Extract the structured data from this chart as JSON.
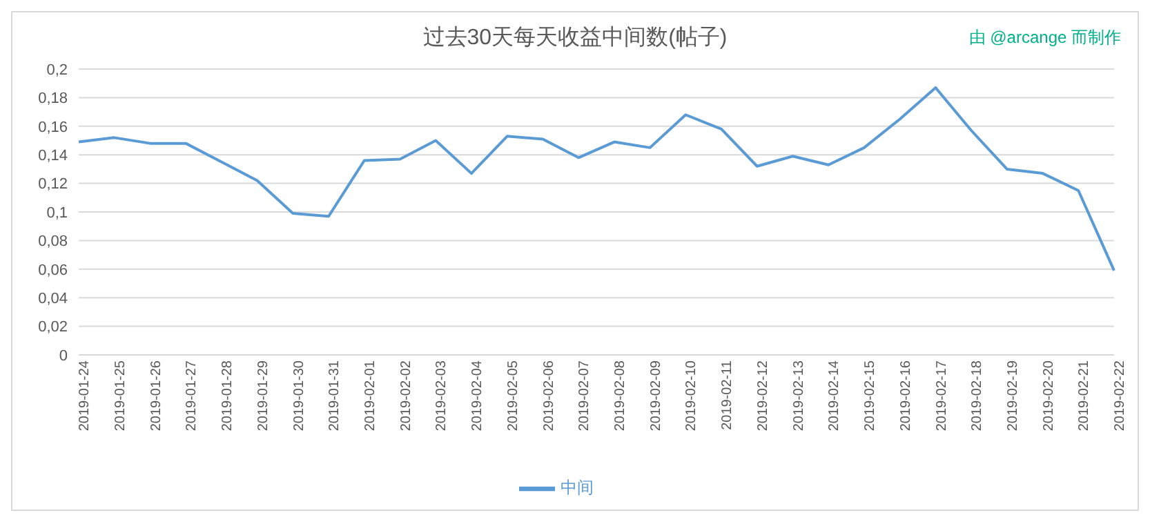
{
  "chart_data": {
    "type": "line",
    "title": "过去30天每天收益中间数(帖子)",
    "annotations": [
      "由 @arcange 而制作"
    ],
    "categories": [
      "2019-01-24",
      "2019-01-25",
      "2019-01-26",
      "2019-01-27",
      "2019-01-28",
      "2019-01-29",
      "2019-01-30",
      "2019-01-31",
      "2019-02-01",
      "2019-02-02",
      "2019-02-03",
      "2019-02-04",
      "2019-02-05",
      "2019-02-06",
      "2019-02-07",
      "2019-02-08",
      "2019-02-09",
      "2019-02-10",
      "2019-02-11",
      "2019-02-12",
      "2019-02-13",
      "2019-02-14",
      "2019-02-15",
      "2019-02-16",
      "2019-02-17",
      "2019-02-18",
      "2019-02-19",
      "2019-02-20",
      "2019-02-21",
      "2019-02-22"
    ],
    "series": [
      {
        "name": "中间",
        "color": "#5b9bd5",
        "values": [
          0.149,
          0.152,
          0.148,
          0.148,
          0.135,
          0.122,
          0.099,
          0.097,
          0.136,
          0.137,
          0.15,
          0.127,
          0.153,
          0.151,
          0.138,
          0.149,
          0.145,
          0.168,
          0.158,
          0.132,
          0.139,
          0.133,
          0.145,
          0.165,
          0.187,
          0.157,
          0.13,
          0.127,
          0.115,
          0.059
        ]
      }
    ],
    "ylim": [
      0,
      0.2
    ],
    "yticks": [
      0,
      {
        "value": 0.02,
        "label": "0,02"
      },
      {
        "value": 0.04,
        "label": "0,04"
      },
      {
        "value": 0.06,
        "label": "0,06"
      },
      {
        "value": 0.08,
        "label": "0,08"
      },
      {
        "value": 0.1,
        "label": "0,1"
      },
      {
        "value": 0.12,
        "label": "0,12"
      },
      {
        "value": 0.14,
        "label": "0,14"
      },
      {
        "value": 0.16,
        "label": "0,16"
      },
      {
        "value": 0.18,
        "label": "0,18"
      },
      {
        "value": 0.2,
        "label": "0,2"
      }
    ],
    "grid": "y",
    "legend": "bottom",
    "marker": "none",
    "line_style": "solid"
  }
}
